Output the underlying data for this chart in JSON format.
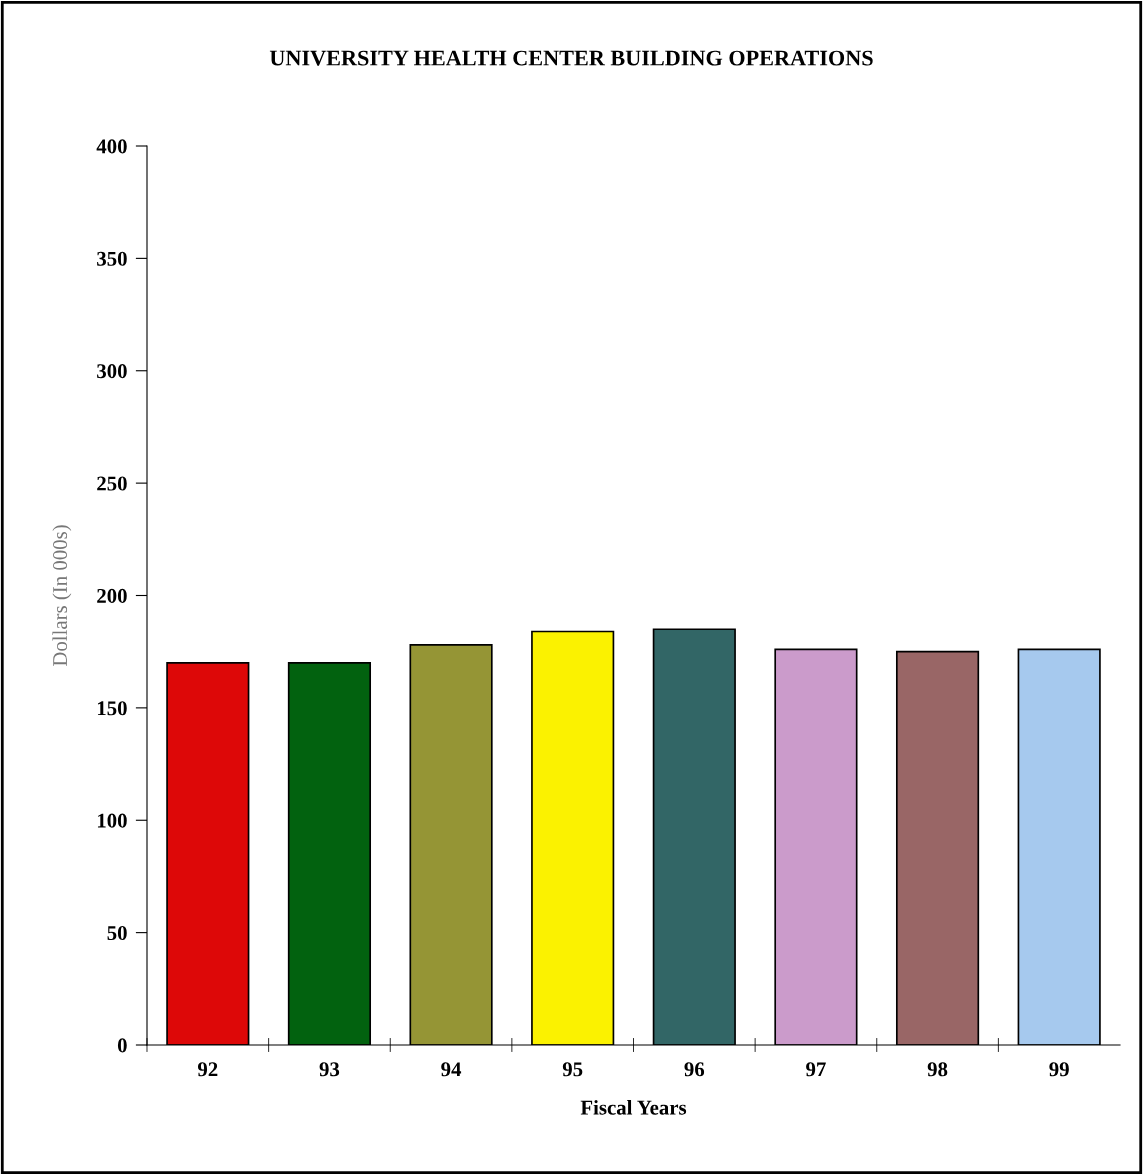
{
  "chart_data": {
    "type": "bar",
    "title": "UNIVERSITY HEALTH CENTER BUILDING OPERATIONS",
    "xlabel": "Fiscal Years",
    "ylabel": "Dollars (In 000s)",
    "categories": [
      "92",
      "93",
      "94",
      "95",
      "96",
      "97",
      "98",
      "99"
    ],
    "values": [
      170,
      170,
      178,
      184,
      185,
      176,
      175,
      176
    ],
    "colors": [
      "#dd0808",
      "#02620f",
      "#959535",
      "#fbf200",
      "#326666",
      "#cb9bcb",
      "#996666",
      "#a6c9ee"
    ],
    "ylim": [
      0,
      400
    ],
    "yticks": [
      0,
      50,
      100,
      150,
      200,
      250,
      300,
      350,
      400
    ],
    "grid": false,
    "legend": false
  }
}
